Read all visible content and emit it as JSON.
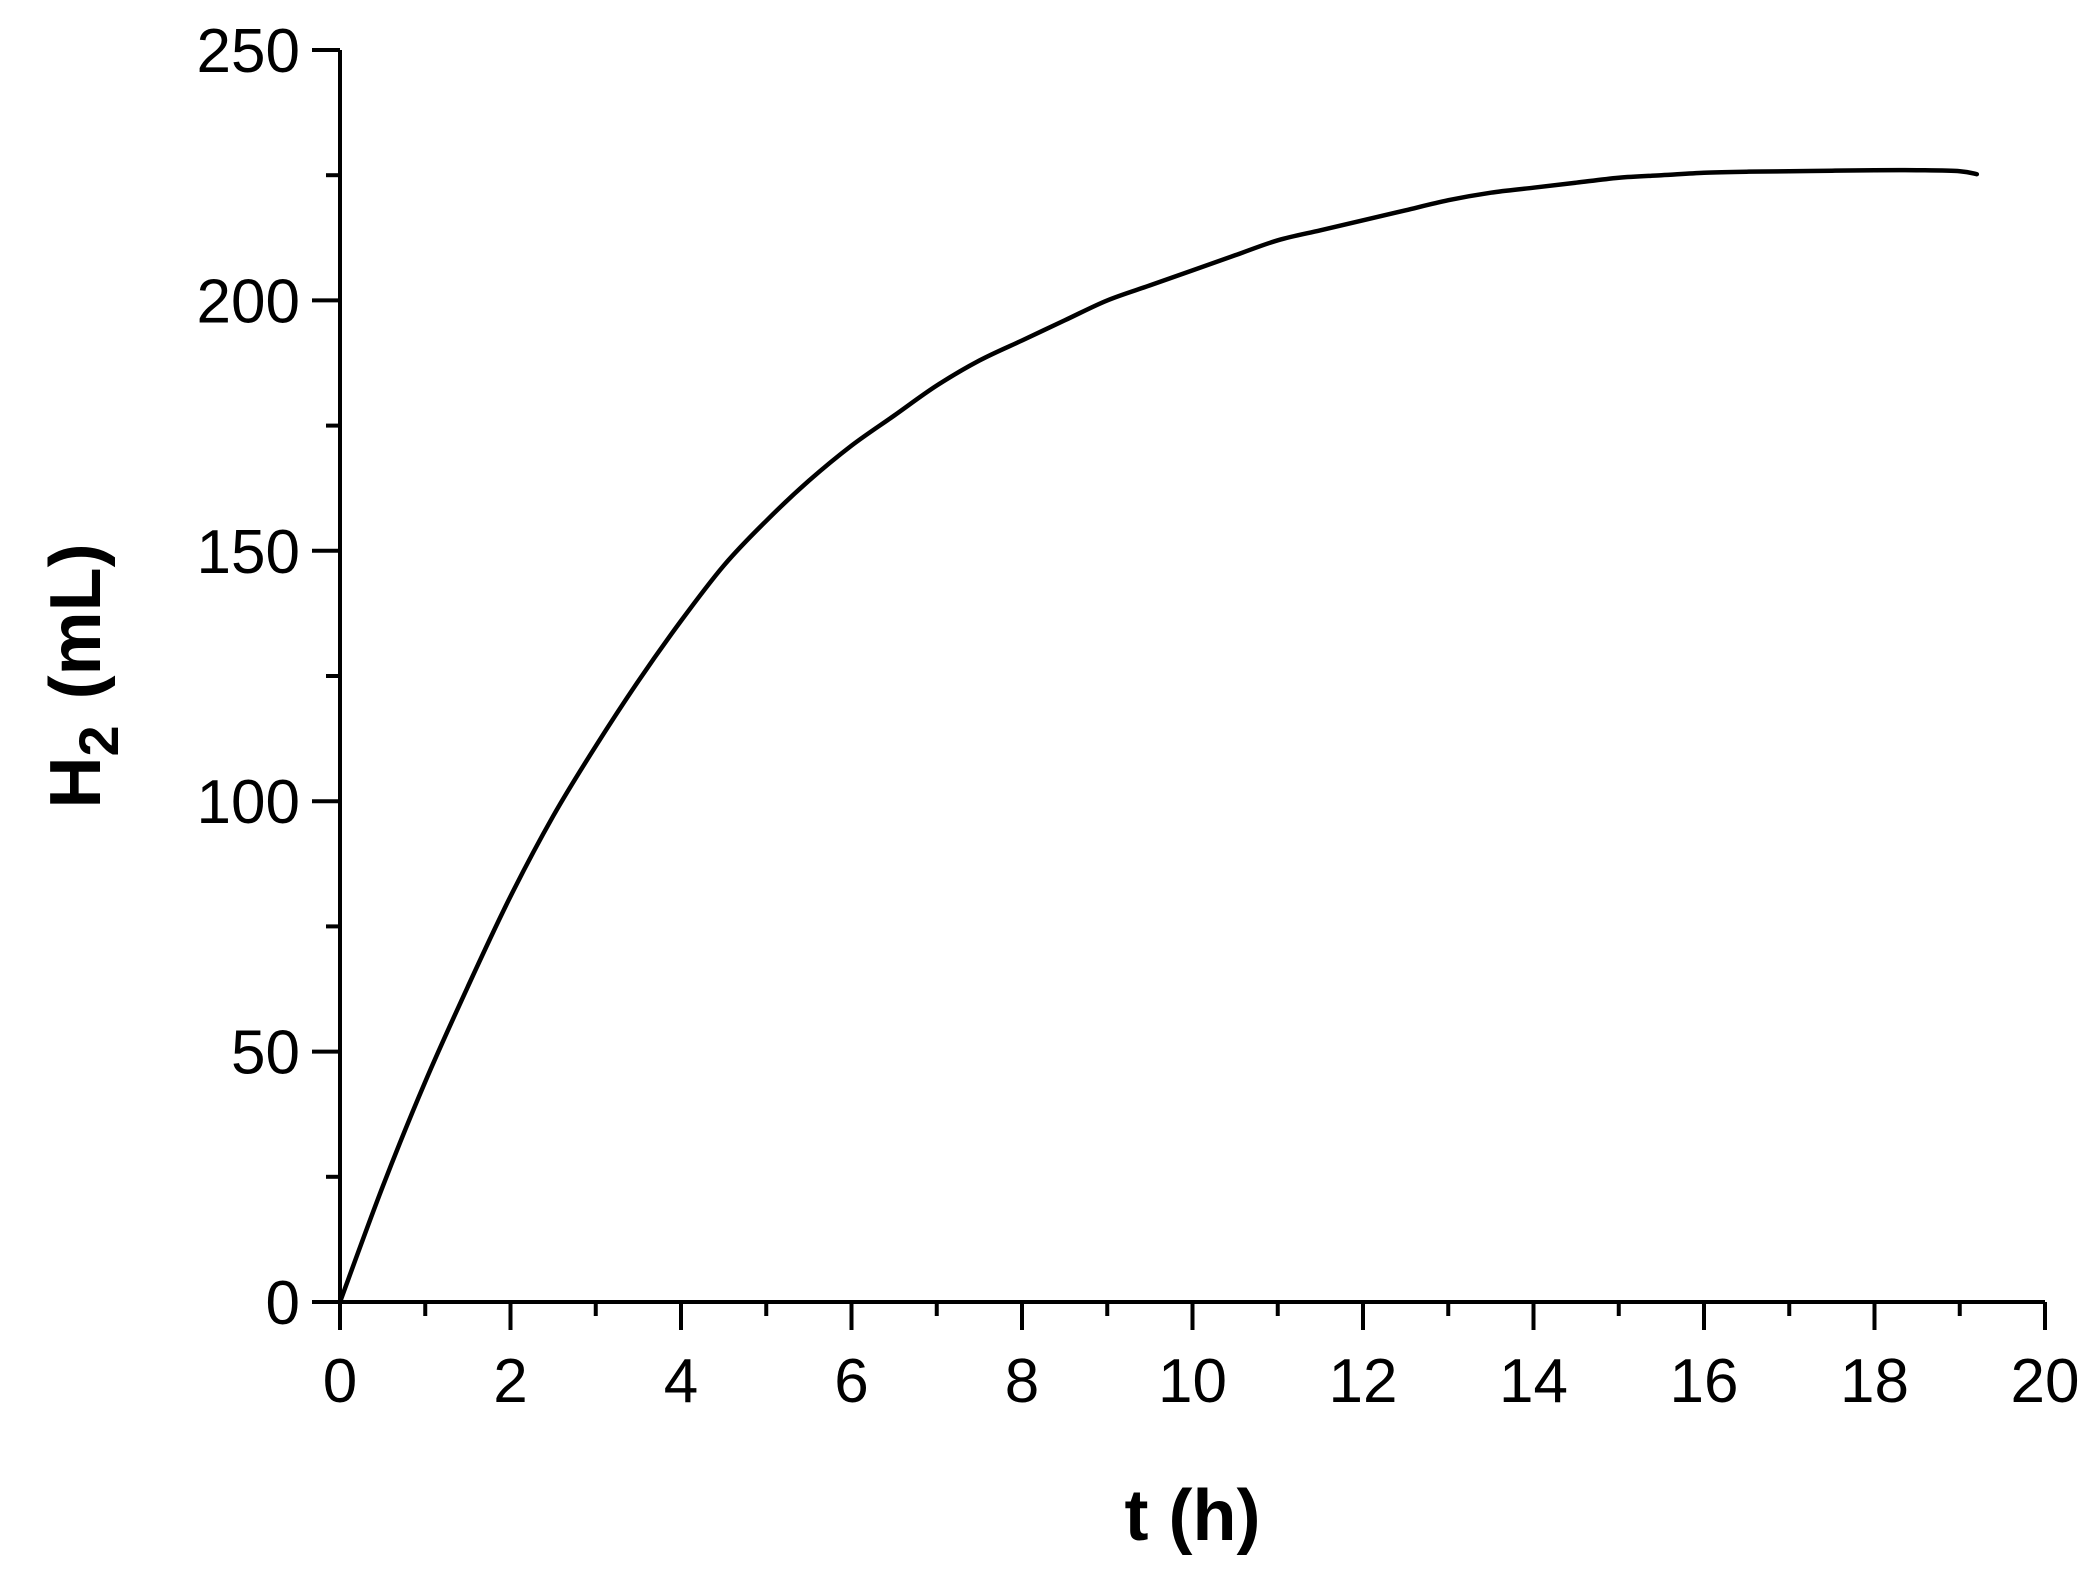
{
  "chart_data": {
    "type": "line",
    "title": "",
    "xlabel": "t (h)",
    "ylabel": {
      "main": "H",
      "subscript": "2",
      "unit": "(mL)"
    },
    "xlim": [
      0,
      20
    ],
    "ylim": [
      0,
      250
    ],
    "x_ticks": [
      0,
      2,
      4,
      6,
      8,
      10,
      12,
      14,
      16,
      18,
      20
    ],
    "y_ticks": [
      0,
      50,
      100,
      150,
      200,
      250
    ],
    "x_minor_step": 1,
    "y_minor_step": 25,
    "grid": false,
    "series": [
      {
        "color": "#000000",
        "x": [
          0,
          0.5,
          1,
          1.5,
          2,
          2.5,
          3,
          3.5,
          4,
          4.5,
          5,
          5.5,
          6,
          6.5,
          7,
          7.5,
          8,
          8.5,
          9,
          9.5,
          10,
          10.5,
          11,
          11.5,
          12,
          12.5,
          13,
          13.5,
          14,
          14.5,
          15,
          15.5,
          16,
          16.5,
          17,
          17.5,
          18,
          18.5,
          19,
          19.2
        ],
        "y": [
          0,
          23,
          44,
          63,
          81,
          97,
          111,
          124,
          136,
          147,
          156,
          164,
          171,
          177,
          183,
          188,
          192,
          196,
          200,
          203,
          206,
          209,
          212,
          214,
          216,
          218,
          220,
          221.5,
          222.5,
          223.5,
          224.5,
          225,
          225.5,
          225.7,
          225.8,
          225.9,
          226,
          226,
          225.8,
          225.2
        ]
      }
    ]
  }
}
